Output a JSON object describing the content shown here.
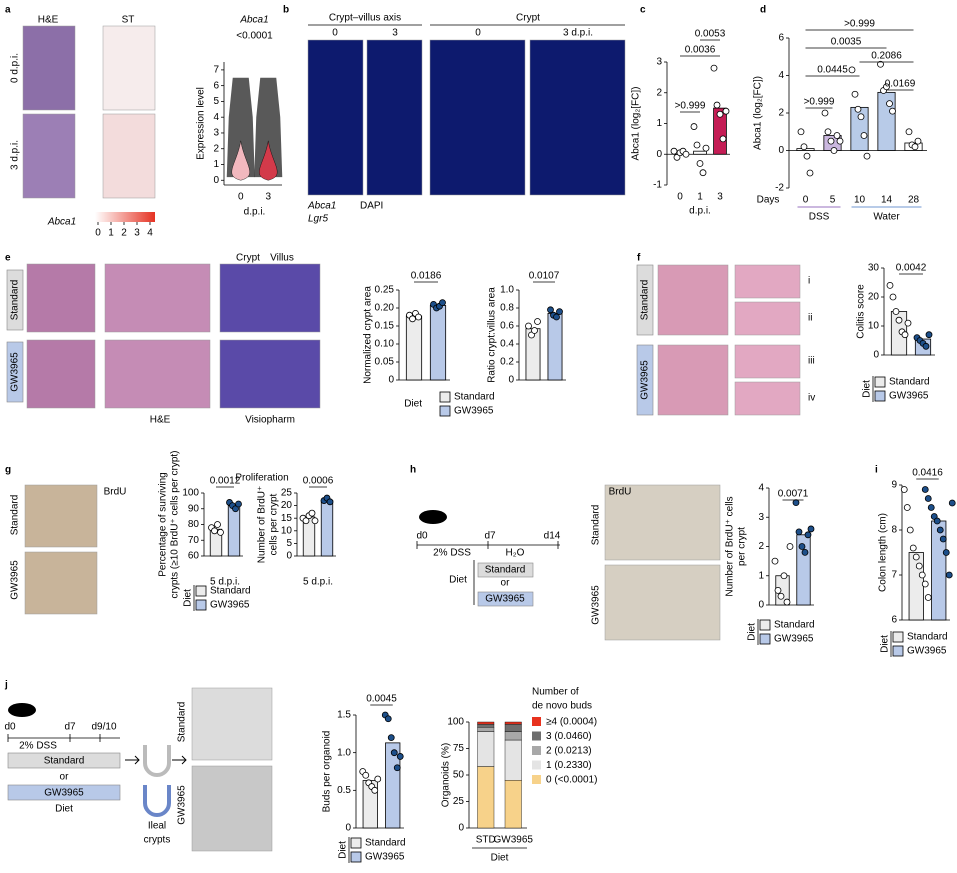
{
  "a": {
    "label": "a",
    "he": "H&E",
    "st": "ST",
    "rows": [
      "0 d.p.i.",
      "3 d.p.i."
    ],
    "gene": "Abca1",
    "scale_ticks": [
      0,
      1,
      2,
      3,
      4
    ],
    "violin": {
      "type": "violin",
      "gene": "Abca1",
      "p_value": "<0.0001",
      "ylabel": "Expression level",
      "xlabel": "d.p.i.",
      "categories": [
        "0",
        "3"
      ],
      "ylim": [
        -0.3,
        7.5
      ],
      "yticks": [
        0,
        1,
        2,
        3,
        4,
        5,
        6,
        7
      ]
    }
  },
  "b": {
    "label": "b",
    "headers": [
      "Crypt–villus axis",
      "Crypt"
    ],
    "times": [
      "0",
      "3",
      "0",
      "3 d.p.i."
    ],
    "legend": [
      "Abca1",
      "Lgr5",
      "DAPI"
    ]
  },
  "c": {
    "label": "c",
    "chart": {
      "type": "bar",
      "ylabel": "Abca1 (log₂[FC])",
      "xlabel": "d.p.i.",
      "categories": [
        "0",
        "1",
        "3"
      ],
      "values": [
        0.05,
        0.1,
        1.5
      ],
      "colors": [
        "#ffffff",
        "#ffffff",
        "#c41d55"
      ],
      "point_colors": [
        "#ffffff",
        "#ffffff",
        "#ffffff"
      ],
      "points": [
        [
          0.1,
          -0.1,
          0.05,
          0.1,
          0
        ],
        [
          0.9,
          0.3,
          -0.3,
          -0.6,
          0.2
        ],
        [
          2.8,
          1.6,
          1.3,
          0.5,
          1.4
        ]
      ],
      "ylim": [
        -1,
        3
      ],
      "yticks": [
        -1,
        0,
        1,
        2,
        3
      ],
      "p_values": [
        ">0.999",
        "0.0036",
        "0.0053"
      ]
    }
  },
  "d": {
    "label": "d",
    "chart": {
      "type": "bar",
      "ylabel": "Abca1 (log₂[FC])",
      "xlabel": "Days",
      "groups": [
        "DSS",
        "Water"
      ],
      "categories": [
        "0",
        "5",
        "10",
        "14",
        "28"
      ],
      "values": [
        0.1,
        0.8,
        2.3,
        3.1,
        0.4
      ],
      "colors": [
        "#ffffff",
        "#cbb8df",
        "#b8cbe8",
        "#b8cbe8",
        "#ffffff"
      ],
      "point_colors": [
        "#ffffff",
        "#ffffff",
        "#ffffff",
        "#ffffff",
        "#ffffff"
      ],
      "points": [
        [
          1.0,
          0.2,
          -0.3,
          -1.2
        ],
        [
          2.0,
          1.0,
          0.5,
          0,
          0.8,
          0.5
        ],
        [
          4.3,
          3.0,
          2.2,
          1.8,
          0.8,
          -0.3
        ],
        [
          4.6,
          3.2,
          3.4,
          2.5,
          2.1
        ],
        [
          1.0,
          0.3,
          0.2,
          0.5
        ]
      ],
      "ylim": [
        -2,
        6
      ],
      "yticks": [
        -2,
        0,
        2,
        4,
        6
      ],
      "p_values": [
        ">0.999",
        "0.0445",
        "0.0035",
        ">0.999",
        "0.2086",
        "0.0169"
      ]
    }
  },
  "e": {
    "label": "e",
    "rows": [
      "Standard",
      "GW3965"
    ],
    "he": "H&E",
    "visiopharm": "Visiopharm",
    "crypt": "Crypt",
    "villus": "Villus",
    "charts": [
      {
        "type": "bar",
        "ylabel": "Normalized crypt area",
        "categories": [
          null,
          null
        ],
        "values": [
          0.178,
          0.207
        ],
        "colors": [
          "#ececec",
          "#b8c9e8"
        ],
        "point_colors": [
          "#ffffff",
          "#1d4f8a"
        ],
        "points": [
          [
            0.18,
            0.17,
            0.185,
            0.175
          ],
          [
            0.21,
            0.2,
            0.205,
            0.215
          ]
        ],
        "ylim": [
          0,
          0.25
        ],
        "yticks": [
          0,
          0.05,
          {
            "value": 0.1,
            "label": "0.10"
          },
          0.15,
          {
            "value": 0.2,
            "label": "0.20"
          },
          0.25
        ],
        "p_values": [
          "0.0186"
        ]
      },
      {
        "type": "bar",
        "ylabel": "Ratio crypt:villus area",
        "categories": [
          null,
          null
        ],
        "values": [
          0.57,
          0.74
        ],
        "colors": [
          "#ececec",
          "#b8c9e8"
        ],
        "point_colors": [
          "#ffffff",
          "#1d4f8a"
        ],
        "points": [
          [
            0.6,
            0.5,
            0.55,
            0.65
          ],
          [
            0.78,
            0.72,
            0.7,
            0.76
          ]
        ],
        "ylim": [
          0,
          1.0
        ],
        "yticks": [
          0,
          0.2,
          0.4,
          0.6,
          0.8,
          {
            "value": 1.0,
            "label": "1.0"
          }
        ],
        "p_values": [
          "0.0107"
        ]
      }
    ],
    "legend": {
      "title": "Diet",
      "items": [
        "Standard",
        "GW3965"
      ],
      "colors": [
        "#ececec",
        "#b8c9e8"
      ]
    }
  },
  "f": {
    "label": "f",
    "rows": [
      "Standard",
      "GW3965"
    ],
    "insets": [
      "i",
      "ii",
      "iii",
      "iv"
    ],
    "chart": {
      "type": "bar",
      "ylabel": "Colitis score",
      "categories": [
        null,
        null
      ],
      "values": [
        15,
        5.5
      ],
      "colors": [
        "#ececec",
        "#b8c9e8"
      ],
      "point_colors": [
        "#ffffff",
        "#1d4f8a"
      ],
      "points": [
        [
          24,
          20,
          15,
          12,
          8,
          7,
          11
        ],
        [
          6,
          5,
          4,
          3,
          7
        ]
      ],
      "ylim": [
        0,
        30
      ],
      "yticks": [
        0,
        10,
        20,
        30
      ],
      "p_values": [
        "0.0042"
      ]
    },
    "legend": {
      "title": "Diet",
      "items": [
        "Standard",
        "GW3965"
      ],
      "colors": [
        "#ececec",
        "#b8c9e8"
      ]
    }
  },
  "g": {
    "label": "g",
    "rows": [
      "Standard",
      "GW3965"
    ],
    "stain": "BrdU",
    "title": "Proliferation",
    "charts": [
      {
        "type": "bar",
        "ylabel": [
          "Percentage of surviving",
          "crypts (≥10 BrdU⁺ cells per crypt)"
        ],
        "xlabel": "5 d.p.i.",
        "categories": [
          null,
          null
        ],
        "values": [
          77,
          92
        ],
        "colors": [
          "#ececec",
          "#b8c9e8"
        ],
        "point_colors": [
          "#ffffff",
          "#1d4f8a"
        ],
        "points": [
          [
            78,
            76,
            80,
            75
          ],
          [
            94,
            92,
            90,
            93
          ]
        ],
        "ylim": [
          60,
          100
        ],
        "yticks": [
          60,
          70,
          80,
          90,
          100
        ],
        "p_values": [
          "0.0012"
        ]
      },
      {
        "type": "bar",
        "ylabel": [
          "Number of BrdU⁺",
          "cells per crypt"
        ],
        "xlabel": "5 d.p.i.",
        "categories": [
          null,
          null
        ],
        "values": [
          15.5,
          22
        ],
        "colors": [
          "#ececec",
          "#b8c9e8"
        ],
        "point_colors": [
          "#ffffff",
          "#1d4f8a"
        ],
        "points": [
          [
            15,
            14,
            16,
            17,
            14
          ],
          [
            22,
            23,
            21.5
          ]
        ],
        "ylim": [
          0,
          25
        ],
        "yticks": [
          0,
          5,
          10,
          15,
          20,
          25
        ],
        "p_values": [
          "0.0006"
        ]
      }
    ],
    "legend": {
      "title": "Diet",
      "items": [
        "Standard",
        "GW3965"
      ],
      "colors": [
        "#ececec",
        "#b8c9e8"
      ]
    }
  },
  "h": {
    "label": "h",
    "mouse": "WT",
    "days": [
      "d0",
      "d7",
      "d14"
    ],
    "treatment": "2% DSS",
    "water": "H₂O",
    "diet": "Diet",
    "diets": [
      "Standard",
      "or",
      "GW3965"
    ],
    "rows": [
      "Standard",
      "GW3965"
    ],
    "stain": "BrdU",
    "chart": {
      "type": "bar",
      "ylabel": [
        "Number of BrdU⁺ cells",
        "per crypt"
      ],
      "categories": [
        null,
        null
      ],
      "values": [
        1.0,
        2.4
      ],
      "colors": [
        "#ececec",
        "#b8c9e8"
      ],
      "point_colors": [
        "#ffffff",
        "#1d4f8a"
      ],
      "points": [
        [
          1.5,
          0.5,
          0.3,
          1.0,
          0.1,
          2.0
        ],
        [
          3.5,
          2.5,
          2.0,
          1.8,
          2.4,
          2.6
        ]
      ],
      "ylim": [
        0,
        4
      ],
      "yticks": [
        0,
        1,
        2,
        3,
        4
      ],
      "p_values": [
        "0.0071"
      ]
    },
    "legend": {
      "title": "Diet",
      "items": [
        "Standard",
        "GW3965"
      ],
      "colors": [
        "#ececec",
        "#b8c9e8"
      ]
    }
  },
  "i": {
    "label": "i",
    "chart": {
      "type": "bar",
      "ylabel": "Colon length (cm)",
      "categories": [
        null,
        null
      ],
      "values": [
        7.5,
        8.2
      ],
      "colors": [
        "#ececec",
        "#b8c9e8"
      ],
      "point_colors": [
        "#ffffff",
        "#1d4f8a"
      ],
      "points": [
        [
          8.9,
          8.5,
          8.0,
          7.6,
          7.4,
          7.2,
          7.0,
          6.8,
          6.5
        ],
        [
          8.9,
          8.7,
          8.5,
          8.3,
          8.2,
          8.0,
          7.8,
          7.5,
          7.0,
          8.6
        ]
      ],
      "ylim": [
        6,
        9
      ],
      "yticks": [
        6,
        7,
        8,
        9
      ],
      "p_values": [
        "0.0416"
      ]
    },
    "legend": {
      "title": "Diet",
      "items": [
        "Standard",
        "GW3965"
      ],
      "colors": [
        "#ececec",
        "#b8c9e8"
      ]
    }
  },
  "j": {
    "label": "j",
    "mouse": "WT",
    "days": [
      "d0",
      "d7",
      "d9/10"
    ],
    "treatment": "2% DSS",
    "diets": [
      "Standard",
      "or",
      "GW3965"
    ],
    "diet": "Diet",
    "crypts": [
      "Ileal",
      "crypts"
    ],
    "rows": [
      "Standard",
      "GW3965"
    ],
    "chart": {
      "type": "bar",
      "ylabel": "Buds per organoid",
      "categories": [
        null,
        null
      ],
      "values": [
        0.63,
        1.13
      ],
      "colors": [
        "#ececec",
        "#b8c9e8"
      ],
      "point_colors": [
        "#ffffff",
        "#1d4f8a"
      ],
      "points": [
        [
          0.75,
          0.7,
          0.6,
          0.55,
          0.5,
          0.65
        ],
        [
          1.5,
          1.45,
          1.2,
          1.0,
          0.8,
          0.95
        ]
      ],
      "ylim": [
        0,
        1.5
      ],
      "yticks": [
        0,
        0.5,
        {
          "value": 1.0,
          "label": "1.0"
        },
        1.5
      ],
      "p_values": [
        "0.0045"
      ]
    },
    "legend": {
      "title": "Diet",
      "items": [
        "Standard",
        "GW3965"
      ],
      "colors": [
        "#ececec",
        "#b8c9e8"
      ]
    },
    "stacked": {
      "type": "stacked_bar",
      "ylabel": "Organoids (%)",
      "xlabel": "Diet",
      "legend_title": [
        "Number of",
        "de novo buds"
      ],
      "categories": [
        "STD",
        "GW3965"
      ],
      "ylim": [
        0,
        100
      ],
      "yticks": [
        0,
        25,
        50,
        75,
        100
      ],
      "series": [
        {
          "name": "0 (<0.0001)",
          "color": "#f7d28a",
          "values": [
            58,
            45
          ]
        },
        {
          "name": "1 (0.2330)",
          "color": "#e4e4e4",
          "values": [
            33,
            38
          ]
        },
        {
          "name": "2 (0.0213)",
          "color": "#a8a8a8",
          "values": [
            4,
            8
          ]
        },
        {
          "name": "3 (0.0460)",
          "color": "#6e6e6e",
          "values": [
            3,
            7
          ]
        },
        {
          "name": "≥4 (0.0004)",
          "color": "#e8321e",
          "values": [
            2,
            2
          ]
        }
      ]
    }
  }
}
